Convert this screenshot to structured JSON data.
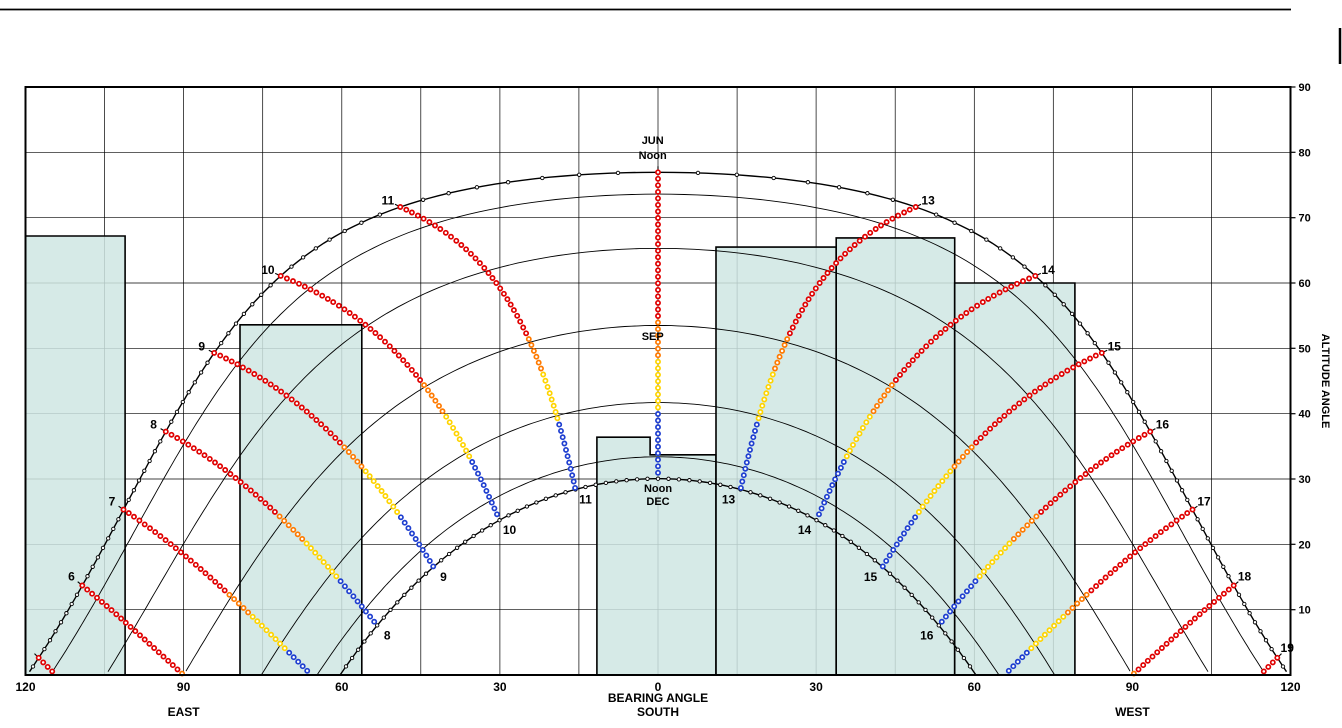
{
  "page": {
    "background": "#ffffff"
  },
  "chart_data": {
    "type": "line",
    "chart_kind": "sun-path-diagram-with-obstructions",
    "xlabel": "BEARING ANGLE",
    "ylabel": "ALTITUDE ANGLE",
    "x_direction_labels": {
      "east": "EAST",
      "south": "SOUTH",
      "west": "WEST"
    },
    "xlim": [
      -120,
      120
    ],
    "ylim": [
      0,
      90
    ],
    "x_tick_positions_deg": [
      -120,
      -90,
      -60,
      -30,
      0,
      30,
      60,
      90,
      120
    ],
    "x_tick_labels": [
      "120",
      "90",
      "60",
      "30",
      "0",
      "30",
      "60",
      "90",
      "120"
    ],
    "y_tick_labels": [
      "10",
      "20",
      "30",
      "40",
      "50",
      "60",
      "70",
      "80",
      "90"
    ],
    "grid": {
      "vertical_step_deg": 15,
      "horizontal_step_deg": 10,
      "color": "#000000"
    },
    "solar_model": {
      "latitude_deg": 36.5,
      "month_arc_declinations_deg": [
        23.45,
        20.1,
        11.8,
        0,
        -11.8,
        -20.1,
        -23.45
      ],
      "jun_declination_deg": 23.45,
      "dec_declination_deg": -23.45
    },
    "annotations": [
      {
        "text": "JUN",
        "az": -1,
        "alt": 81.3
      },
      {
        "text": "Noon",
        "az": -1,
        "alt": 79.0
      },
      {
        "text": "SEP",
        "az": -1,
        "alt": 51.3
      },
      {
        "text": "Noon",
        "az": 0,
        "alt": 28.0
      },
      {
        "text": "DEC",
        "az": 0,
        "alt": 26.0
      }
    ],
    "hours": {
      "curve_hours": [
        5,
        6,
        7,
        8,
        9,
        10,
        11,
        12,
        13,
        14,
        15,
        16,
        17,
        18,
        19
      ],
      "outer_labels": [
        6,
        7,
        8,
        9,
        10,
        11,
        13,
        14,
        15,
        16,
        17,
        18,
        19
      ],
      "inner_labels": [
        8,
        9,
        10,
        11,
        13,
        14,
        15,
        16
      ]
    },
    "dot_style": {
      "radius": 2.1,
      "fill": "#ffffff",
      "colors": {
        "red": "#e00000",
        "orange": "#ff7a00",
        "yellow": "#ffd400",
        "blue": "#1f3fd0"
      },
      "season_color_stops": [
        0.48,
        0.6,
        0.78
      ]
    },
    "obstructions": [
      {
        "name": "building-far-east",
        "polygon": [
          [
            -120,
            0
          ],
          [
            -120,
            67.2
          ],
          [
            -101.1,
            67.2
          ],
          [
            -101.1,
            0
          ]
        ]
      },
      {
        "name": "building-east",
        "polygon": [
          [
            -79.3,
            0
          ],
          [
            -79.3,
            53.6
          ],
          [
            -56.2,
            53.6
          ],
          [
            -56.2,
            0
          ]
        ]
      },
      {
        "name": "building-south",
        "polygon": [
          [
            -11.6,
            0
          ],
          [
            -11.6,
            36.4
          ],
          [
            -1.5,
            36.4
          ],
          [
            -1.5,
            33.7
          ],
          [
            11,
            33.7
          ],
          [
            11,
            0
          ]
        ]
      },
      {
        "name": "building-west-1",
        "polygon": [
          [
            11,
            0
          ],
          [
            11,
            65.5
          ],
          [
            33.8,
            65.5
          ],
          [
            33.8,
            0
          ]
        ]
      },
      {
        "name": "building-west-2",
        "polygon": [
          [
            33.8,
            0
          ],
          [
            33.8,
            66.9
          ],
          [
            56.3,
            66.9
          ],
          [
            56.3,
            0
          ]
        ]
      },
      {
        "name": "building-west-3",
        "polygon": [
          [
            56.3,
            0
          ],
          [
            56.3,
            60
          ],
          [
            79.1,
            60
          ],
          [
            79.1,
            0
          ]
        ]
      }
    ],
    "obstruction_style": {
      "fill": "#cfe6e3",
      "opacity": 0.85,
      "stroke": "#000000"
    }
  }
}
